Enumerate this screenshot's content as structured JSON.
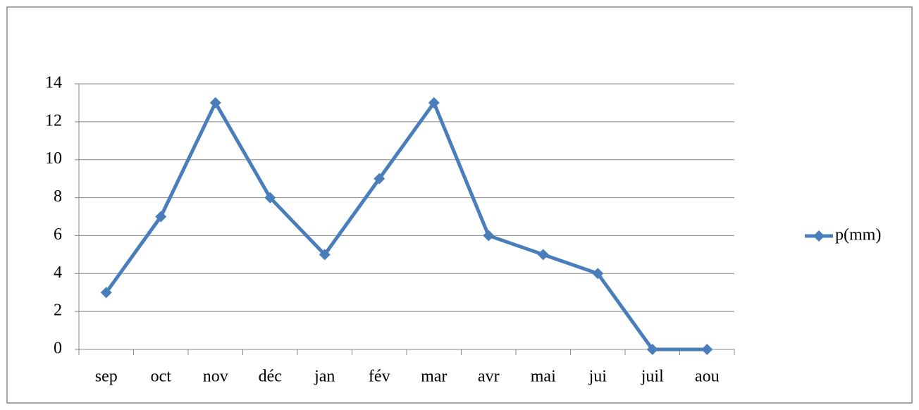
{
  "chart_data": {
    "type": "line",
    "categories": [
      "sep",
      "oct",
      "nov",
      "déc",
      "jan",
      "fév",
      "mar",
      "avr",
      "mai",
      "jui",
      "juil",
      "aou"
    ],
    "series": [
      {
        "name": "p(mm)",
        "color": "#4a7ebb",
        "values": [
          3,
          7,
          13,
          8,
          5,
          9,
          13,
          6,
          5,
          4,
          0,
          0
        ]
      }
    ],
    "ylim": [
      0,
      14
    ],
    "yticks": [
      0,
      2,
      4,
      6,
      8,
      10,
      12,
      14
    ],
    "grid": true,
    "legend": "right"
  }
}
